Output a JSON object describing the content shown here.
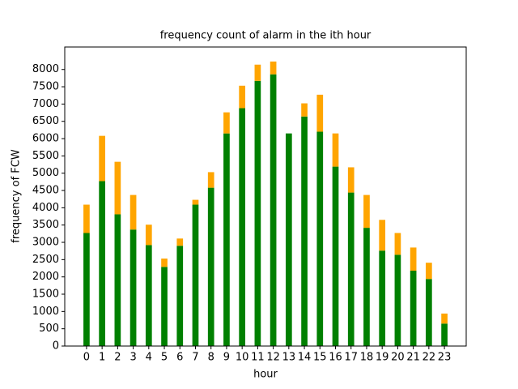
{
  "chart_data": {
    "type": "stacked_bar",
    "title": "frequency count of alarm in the ith hour",
    "x_label": "hour",
    "y_label": "frequency of FCW",
    "x": [
      0,
      1,
      2,
      3,
      4,
      5,
      6,
      7,
      8,
      9,
      10,
      11,
      12,
      13,
      14,
      15,
      16,
      17,
      18,
      19,
      20,
      21,
      22,
      23
    ],
    "xlim": [
      -1.4,
      24.4
    ],
    "xticks": [
      0,
      1,
      2,
      3,
      4,
      5,
      6,
      7,
      8,
      9,
      10,
      11,
      12,
      13,
      14,
      15,
      16,
      17,
      18,
      19,
      20,
      21,
      22,
      23
    ],
    "ylim": [
      0,
      8650
    ],
    "yticks": [
      0,
      500,
      1000,
      1500,
      2000,
      2500,
      3000,
      3500,
      4000,
      4500,
      5000,
      5500,
      6000,
      6500,
      7000,
      7500,
      8000
    ],
    "grid": false,
    "bar_width": 0.4,
    "series": [
      {
        "color": "#008000",
        "values": [
          3270,
          4770,
          3810,
          3370,
          2920,
          2290,
          2900,
          4090,
          4580,
          6150,
          6880,
          7670,
          7860,
          6150,
          6640,
          6200,
          5190,
          4440,
          3420,
          2760,
          2640,
          2180,
          1940,
          650
        ]
      },
      {
        "color": "#ffa500",
        "values": [
          820,
          1310,
          1520,
          1000,
          590,
          240,
          210,
          140,
          450,
          610,
          650,
          470,
          370,
          0,
          380,
          1070,
          960,
          730,
          950,
          890,
          630,
          670,
          470,
          290
        ]
      }
    ]
  }
}
